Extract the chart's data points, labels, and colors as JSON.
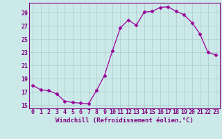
{
  "x": [
    0,
    1,
    2,
    3,
    4,
    5,
    6,
    7,
    8,
    9,
    10,
    11,
    12,
    13,
    14,
    15,
    16,
    17,
    18,
    19,
    20,
    21,
    22,
    23
  ],
  "y": [
    18.0,
    17.3,
    17.2,
    16.7,
    15.6,
    15.4,
    15.3,
    15.2,
    17.2,
    19.5,
    23.2,
    26.7,
    27.9,
    27.1,
    29.1,
    29.2,
    29.8,
    29.9,
    29.2,
    28.7,
    27.5,
    25.8,
    23.0,
    22.6
  ],
  "line_color": "#990099",
  "marker": "D",
  "marker_size": 2.5,
  "bg_color": "#cce9e9",
  "grid_color": "#aacccc",
  "xlabel": "Windchill (Refroidissement éolien,°C)",
  "ylim": [
    14.5,
    30.5
  ],
  "xlim": [
    -0.5,
    23.5
  ],
  "yticks": [
    15,
    17,
    19,
    21,
    23,
    25,
    27,
    29
  ],
  "xticks": [
    0,
    1,
    2,
    3,
    4,
    5,
    6,
    7,
    8,
    9,
    10,
    11,
    12,
    13,
    14,
    15,
    16,
    17,
    18,
    19,
    20,
    21,
    22,
    23
  ],
  "tick_color": "#800080",
  "label_fontsize": 6.5,
  "tick_fontsize": 6.0,
  "spine_color": "#800080"
}
